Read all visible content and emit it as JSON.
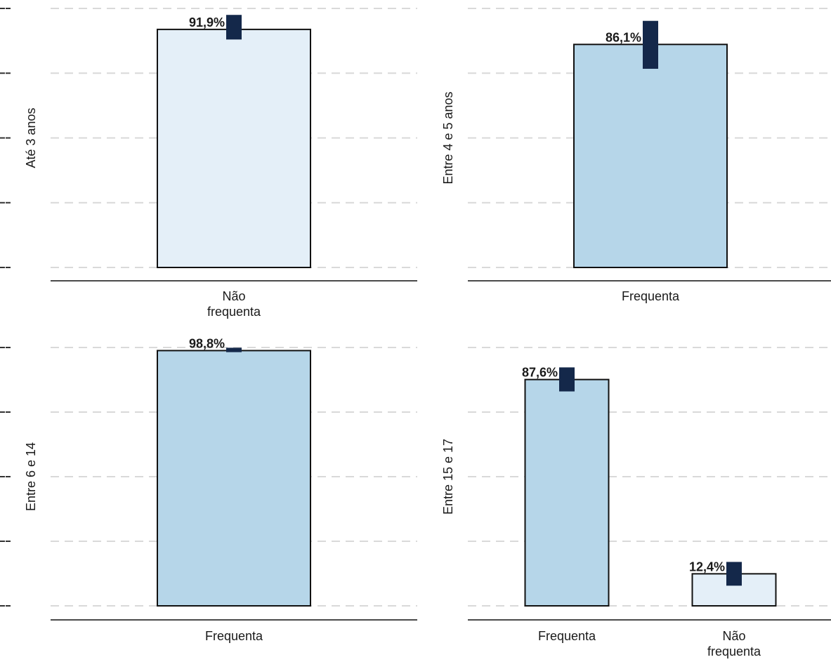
{
  "colors": {
    "frequenta": "#b6d6e9",
    "nao_frequenta": "#e4eff8",
    "error_bar": "#14284a",
    "grid": "#d9d9d9",
    "axis": "#4a4a4a",
    "bar_border": "#111111"
  },
  "chart_data": [
    {
      "type": "bar",
      "panel": "Até 3 anos",
      "ylabel": "Até 3 anos",
      "ylim": [
        0,
        100
      ],
      "grid": true,
      "categories": [
        "Não\nfrequenta"
      ],
      "category_keys": [
        "nao_frequenta"
      ],
      "values": [
        91.9
      ],
      "ci": [
        [
          88.0,
          97.5
        ]
      ],
      "data_labels": [
        "91,9%"
      ]
    },
    {
      "type": "bar",
      "panel": "Entre 4 e 5 anos",
      "ylabel": "Entre 4 e 5 anos",
      "ylim": [
        0,
        100
      ],
      "grid": true,
      "categories": [
        "Frequenta"
      ],
      "category_keys": [
        "frequenta"
      ],
      "values": [
        86.1
      ],
      "ci": [
        [
          76.7,
          95.2
        ]
      ],
      "data_labels": [
        "86,1%"
      ]
    },
    {
      "type": "bar",
      "panel": "Entre 6 e 14",
      "ylabel": "Entre 6 e 14",
      "ylim": [
        0,
        100
      ],
      "grid": true,
      "categories": [
        "Frequenta"
      ],
      "category_keys": [
        "frequenta"
      ],
      "values": [
        98.8
      ],
      "ci": [
        [
          98.2,
          99.9
        ]
      ],
      "data_labels": [
        "98,8%"
      ]
    },
    {
      "type": "bar",
      "panel": "Entre 15 e 17",
      "ylabel": "Entre 15 e 17",
      "ylim": [
        0,
        100
      ],
      "grid": true,
      "categories": [
        "Frequenta",
        "Não\nfrequenta"
      ],
      "category_keys": [
        "frequenta",
        "nao_frequenta"
      ],
      "values": [
        87.6,
        12.4
      ],
      "ci": [
        [
          83.0,
          92.3
        ],
        [
          7.8,
          17.0
        ]
      ],
      "data_labels": [
        "87,6%",
        "12,4%"
      ]
    }
  ]
}
